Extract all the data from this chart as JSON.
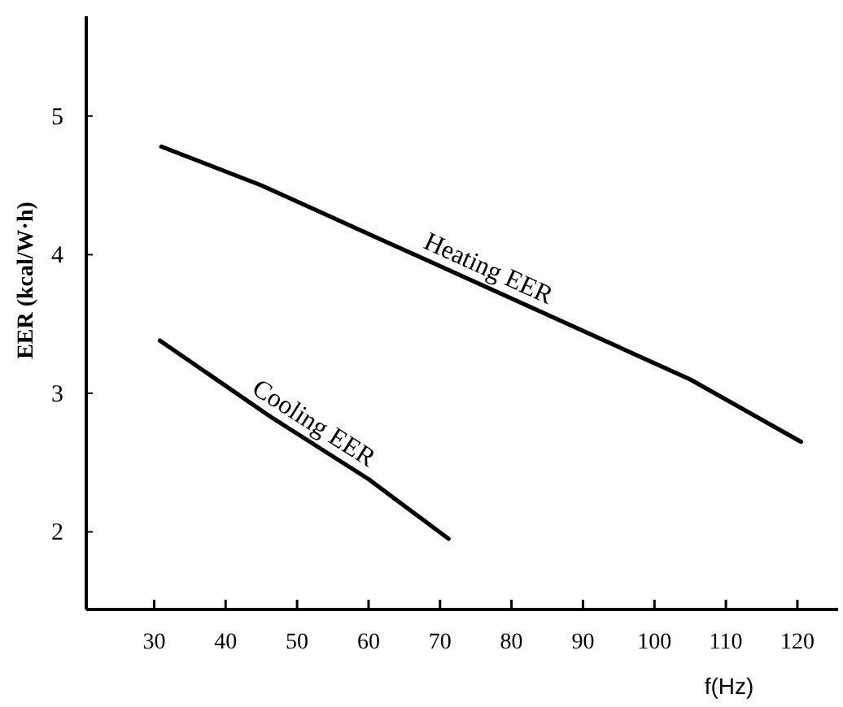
{
  "chart_data": {
    "type": "line",
    "xlabel": "f(Hz)",
    "ylabel": "EER (kcal/W·h)",
    "xlim": [
      20.5,
      125.7
    ],
    "ylim": [
      1.44,
      5.72
    ],
    "xticks": [
      30,
      40,
      50,
      60,
      70,
      80,
      90,
      100,
      110,
      120
    ],
    "yticks": [
      2,
      3,
      4,
      5
    ],
    "grid": false,
    "marker": "none",
    "line_style": "solid",
    "series": [
      {
        "name": "Heating EER",
        "color": "#000000",
        "x": [
          31,
          45,
          60,
          75,
          90,
          105,
          120.5
        ],
        "values": [
          4.78,
          4.5,
          4.15,
          3.8,
          3.45,
          3.1,
          2.65
        ]
      },
      {
        "name": "Cooling EER",
        "color": "#000000",
        "x": [
          30.8,
          46.3,
          60,
          71.2
        ],
        "values": [
          3.38,
          2.83,
          2.38,
          1.95
        ]
      }
    ]
  }
}
